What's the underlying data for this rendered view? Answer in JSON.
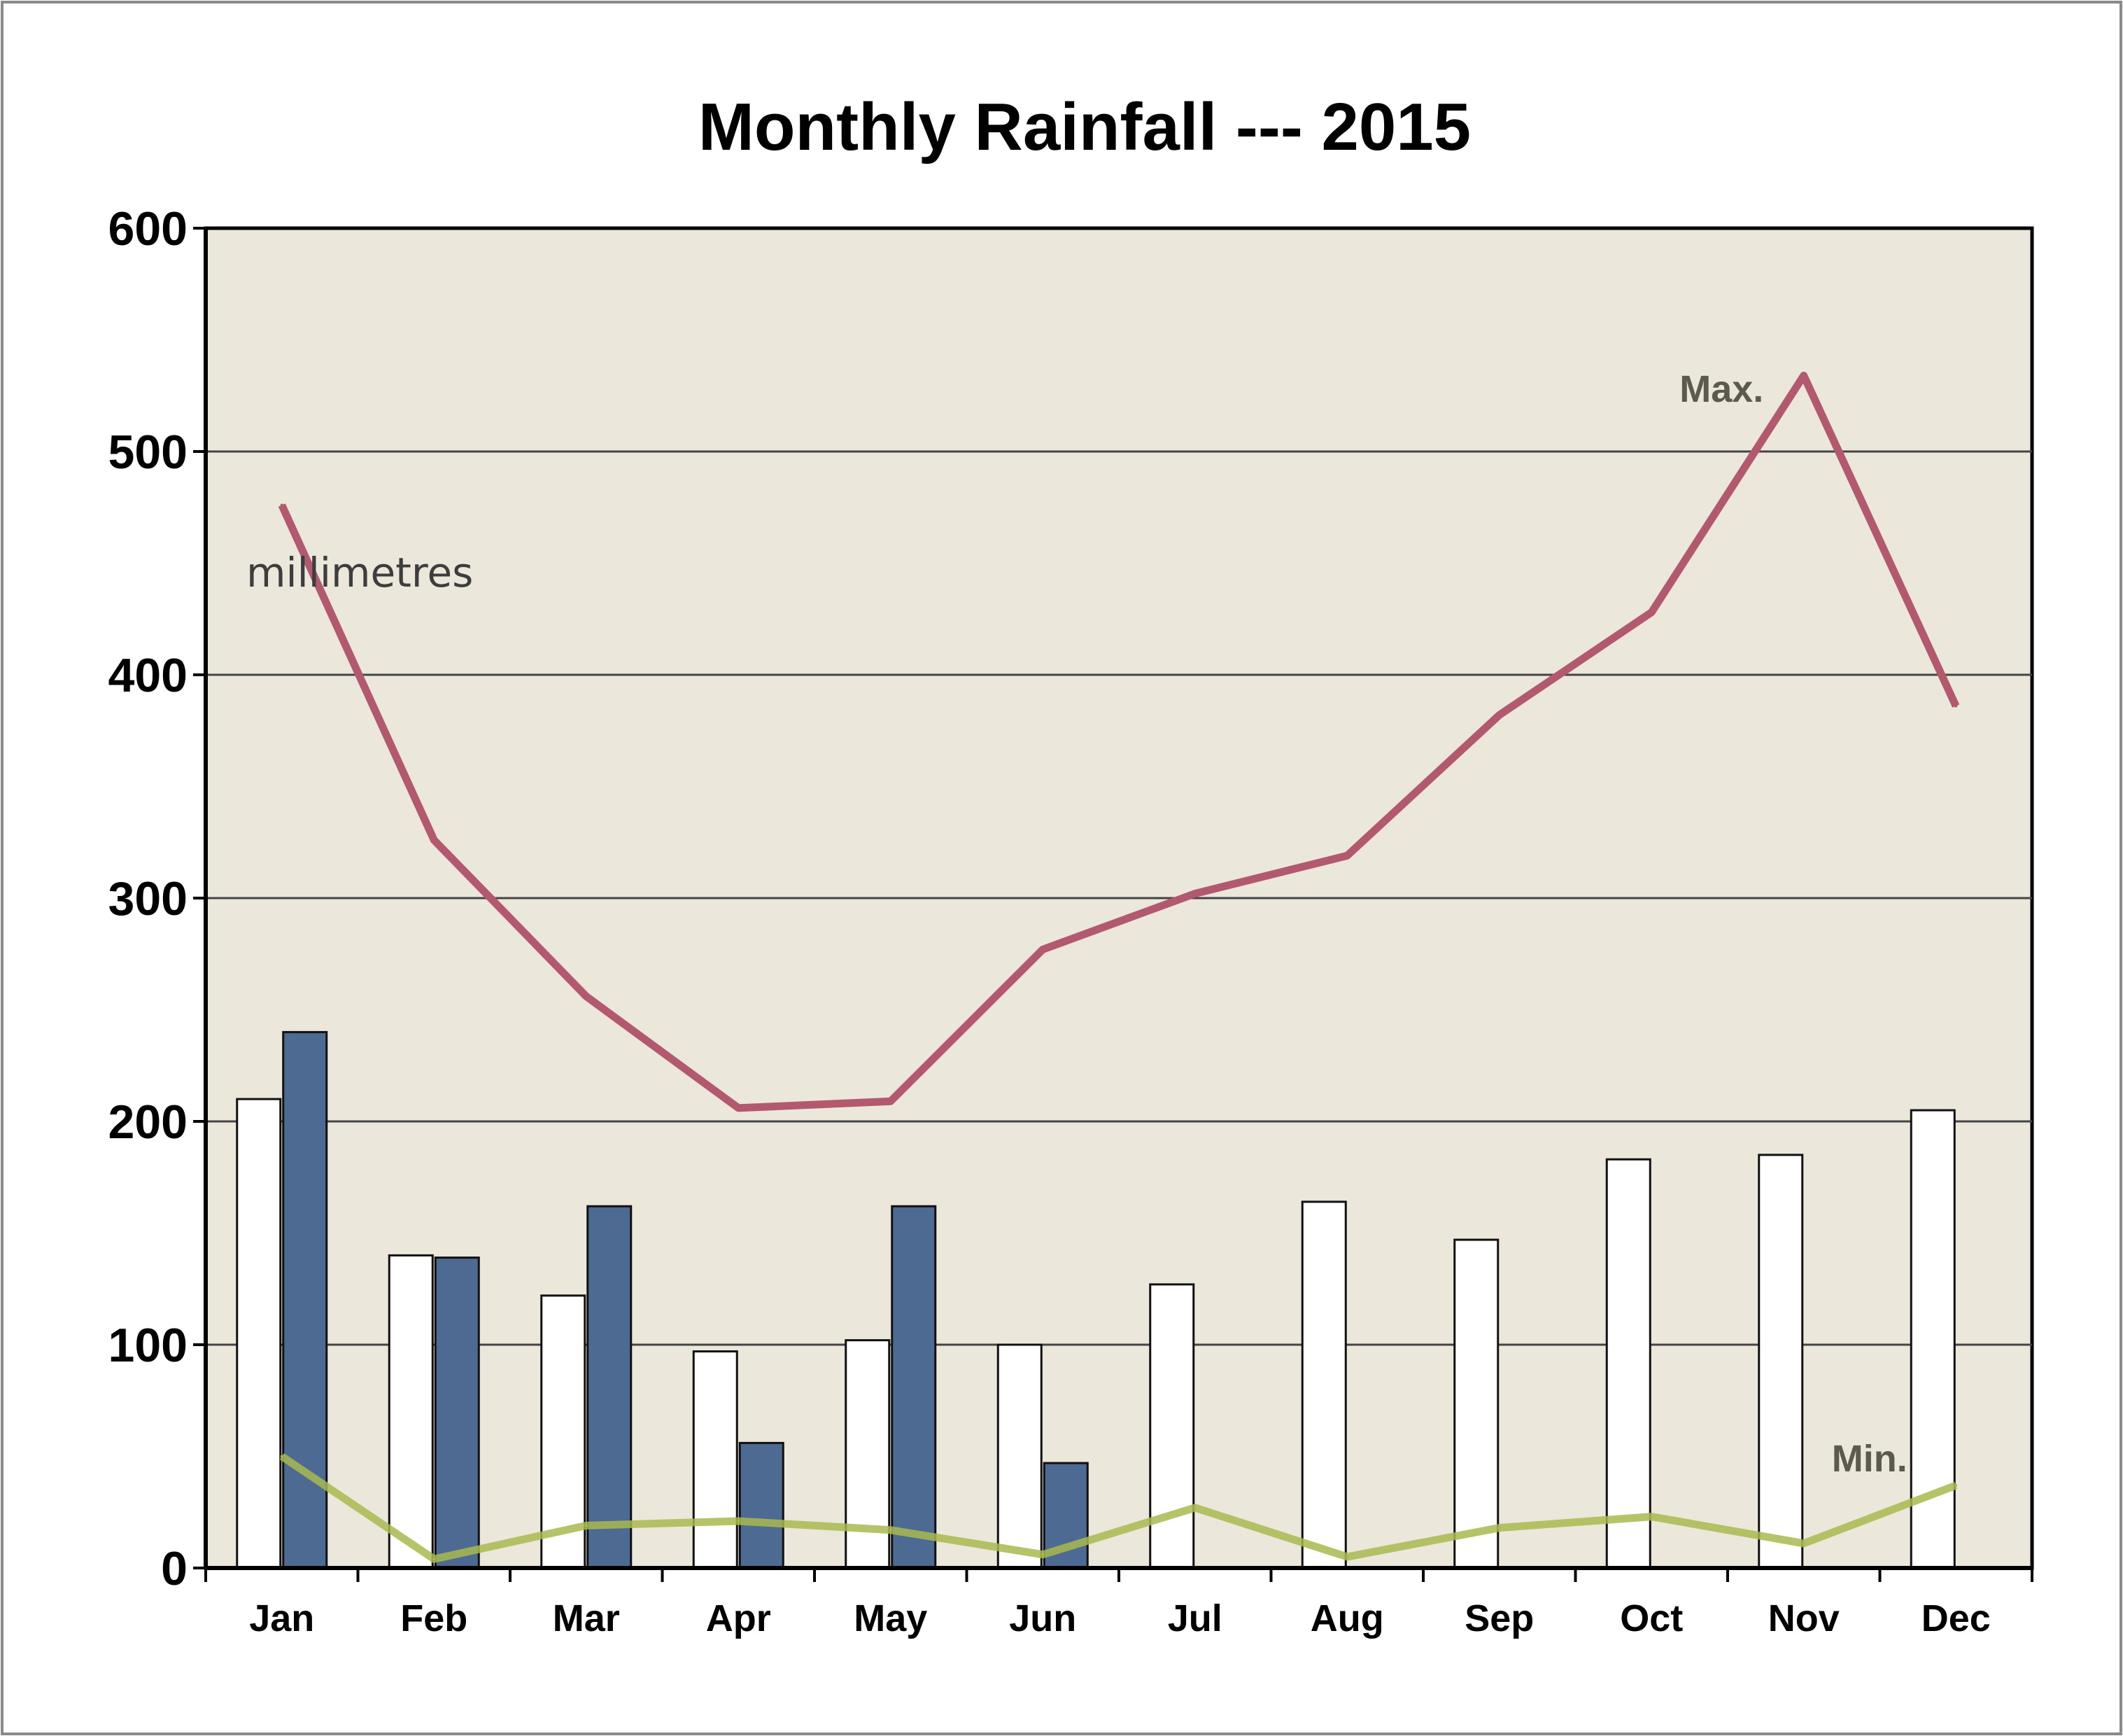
{
  "chart_data": {
    "type": "bar",
    "title": "Monthly Rainfall --- 2015",
    "unit_label": "millimetres",
    "ylim": [
      0,
      600
    ],
    "yticks": [
      "0",
      "100",
      "200",
      "300",
      "400",
      "500",
      "600"
    ],
    "grid": "horizontal",
    "categories": [
      "Jan",
      "Feb",
      "Mar",
      "Apr",
      "May",
      "Jun",
      "Jul",
      "Aug",
      "Sep",
      "Oct",
      "Nov",
      "Dec"
    ],
    "bar_series": [
      {
        "color": "#ffffff",
        "values": [
          210,
          140,
          122,
          97,
          102,
          100,
          127,
          164,
          147,
          183,
          185,
          205
        ]
      },
      {
        "color": "#4d6a93",
        "values": [
          240,
          139,
          162,
          56,
          162,
          47,
          null,
          null,
          null,
          null,
          null,
          null
        ]
      }
    ],
    "line_series": [
      {
        "name": "Max.",
        "color": "#b3596f",
        "values": [
          476,
          326,
          256,
          206,
          209,
          277,
          302,
          319,
          382,
          428,
          534,
          386
        ]
      },
      {
        "name": "Min.",
        "color": "#a9b94f",
        "values": [
          50,
          4,
          19,
          21,
          17,
          6,
          27,
          5,
          18,
          23,
          11,
          37
        ]
      }
    ],
    "plot_background": "#ebe8db"
  }
}
